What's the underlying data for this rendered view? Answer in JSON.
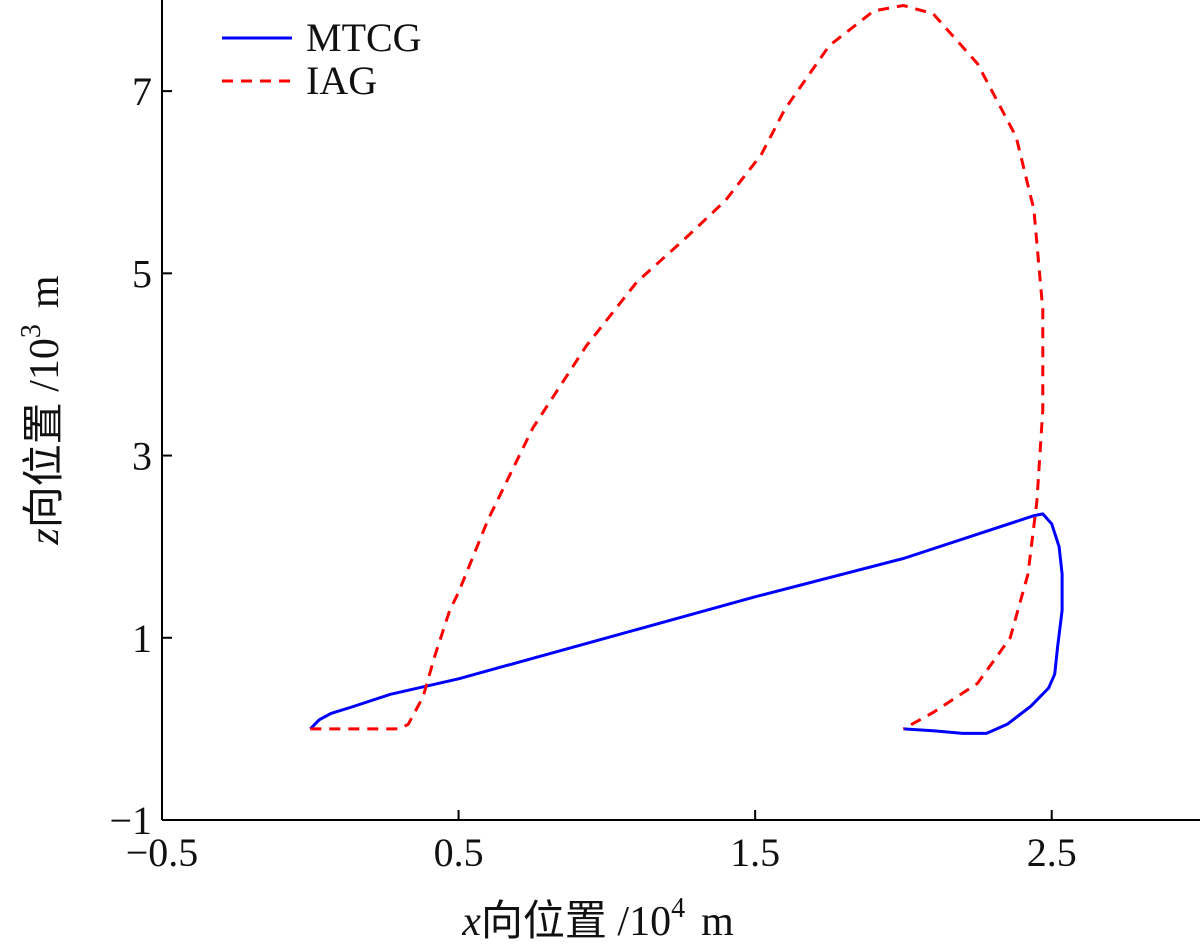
{
  "chart_data": {
    "type": "line",
    "title": "",
    "xlabel": {
      "var": "x",
      "text": "向位置 /10",
      "exp": "4",
      "unit": "m"
    },
    "ylabel": {
      "var": "z",
      "text": "向位置 /10",
      "exp": "3",
      "unit": "m"
    },
    "xlim": [
      -0.5,
      3.0
    ],
    "ylim": [
      -1,
      8
    ],
    "xticks": [
      -0.5,
      0.5,
      1.5,
      2.5
    ],
    "xtick_labels": [
      "−0.5",
      "0.5",
      "1.5",
      "2.5"
    ],
    "yticks": [
      -1,
      1,
      3,
      5,
      7
    ],
    "ytick_labels": [
      "−1",
      "1",
      "3",
      "5",
      "7"
    ],
    "grid": false,
    "legend_position": "top-left",
    "series": [
      {
        "name": "MTCG",
        "color": "#0000ff",
        "style": "solid",
        "points": [
          [
            2.0,
            0.0
          ],
          [
            2.1,
            -0.02
          ],
          [
            2.2,
            -0.05
          ],
          [
            2.28,
            -0.05
          ],
          [
            2.35,
            0.05
          ],
          [
            2.43,
            0.25
          ],
          [
            2.49,
            0.45
          ],
          [
            2.51,
            0.6
          ],
          [
            2.52,
            0.9
          ],
          [
            2.535,
            1.3
          ],
          [
            2.535,
            1.7
          ],
          [
            2.525,
            2.0
          ],
          [
            2.5,
            2.25
          ],
          [
            2.47,
            2.36
          ],
          [
            2.44,
            2.34
          ],
          [
            2.0,
            1.87
          ],
          [
            1.5,
            1.45
          ],
          [
            1.0,
            1.0
          ],
          [
            0.5,
            0.55
          ],
          [
            0.27,
            0.38
          ],
          [
            0.14,
            0.24
          ],
          [
            0.07,
            0.17
          ],
          [
            0.03,
            0.1
          ],
          [
            0.0,
            0.0
          ]
        ]
      },
      {
        "name": "IAG",
        "color": "#ff0000",
        "style": "dashed",
        "points": [
          [
            0.0,
            0.0
          ],
          [
            0.3,
            0.0
          ],
          [
            0.33,
            0.05
          ],
          [
            0.38,
            0.35
          ],
          [
            0.42,
            0.8
          ],
          [
            0.47,
            1.3
          ],
          [
            0.5,
            1.5
          ],
          [
            0.6,
            2.3
          ],
          [
            0.75,
            3.3
          ],
          [
            0.93,
            4.2
          ],
          [
            1.1,
            4.9
          ],
          [
            1.27,
            5.4
          ],
          [
            1.4,
            5.8
          ],
          [
            1.52,
            6.3
          ],
          [
            1.6,
            6.8
          ],
          [
            1.75,
            7.5
          ],
          [
            1.9,
            7.88
          ],
          [
            2.0,
            7.94
          ],
          [
            2.1,
            7.85
          ],
          [
            2.25,
            7.3
          ],
          [
            2.38,
            6.5
          ],
          [
            2.44,
            5.7
          ],
          [
            2.47,
            4.6
          ],
          [
            2.47,
            3.5
          ],
          [
            2.45,
            2.5
          ],
          [
            2.42,
            1.7
          ],
          [
            2.36,
            1.0
          ],
          [
            2.25,
            0.5
          ],
          [
            2.1,
            0.18
          ],
          [
            2.0,
            0.0
          ]
        ]
      }
    ]
  }
}
